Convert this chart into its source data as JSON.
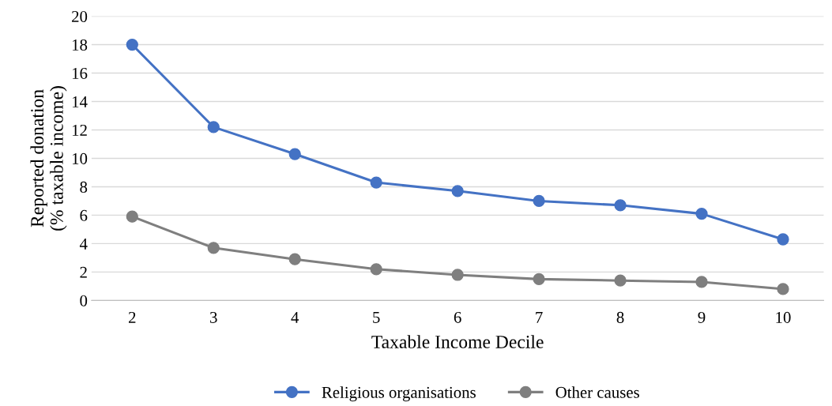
{
  "chart_data": {
    "type": "line",
    "xlabel": "Taxable Income Decile",
    "ylabel": "Reported donation\n(% taxable income)",
    "categories": [
      "2",
      "3",
      "4",
      "5",
      "6",
      "7",
      "8",
      "9",
      "10"
    ],
    "series": [
      {
        "name": "Religious organisations",
        "color": "#4472c4",
        "values": [
          18.0,
          12.2,
          10.3,
          8.3,
          7.7,
          7.0,
          6.7,
          6.1,
          4.3
        ]
      },
      {
        "name": "Other causes",
        "color": "#7f7f7f",
        "values": [
          5.9,
          3.7,
          2.9,
          2.2,
          1.8,
          1.5,
          1.4,
          1.3,
          0.8
        ]
      }
    ],
    "ylim": [
      0,
      20
    ],
    "yticks": [
      0,
      2,
      4,
      6,
      8,
      10,
      12,
      14,
      16,
      18,
      20
    ],
    "grid": "y",
    "legend": "bottom",
    "marker": "circle",
    "line_style": "solid"
  }
}
